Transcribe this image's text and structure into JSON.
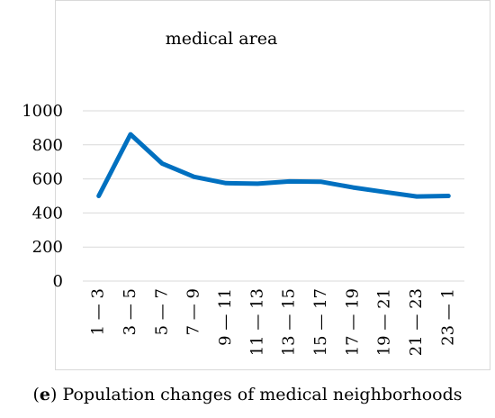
{
  "chart_data": {
    "type": "line",
    "title": "medical area",
    "xlabel": "",
    "ylabel": "",
    "categories": [
      "1 — 3",
      "3 — 5",
      "5 — 7",
      "7 — 9",
      "9 — 11",
      "11 — 13",
      "13 — 15",
      "15 — 17",
      "17 — 19",
      "19 — 21",
      "21 — 23",
      "23 — 1"
    ],
    "series": [
      {
        "values": [
          500,
          862,
          690,
          612,
          575,
          572,
          585,
          583,
          550,
          523,
          497,
          500
        ],
        "color": "#0070c0"
      }
    ],
    "ylim": [
      0,
      1000
    ],
    "yticks": [
      0,
      200,
      400,
      600,
      800,
      1000
    ],
    "grid": true,
    "legend": "none"
  },
  "caption": {
    "label": "(e)",
    "label_letter": "e",
    "text": "Population changes of medical neighborhoods"
  }
}
